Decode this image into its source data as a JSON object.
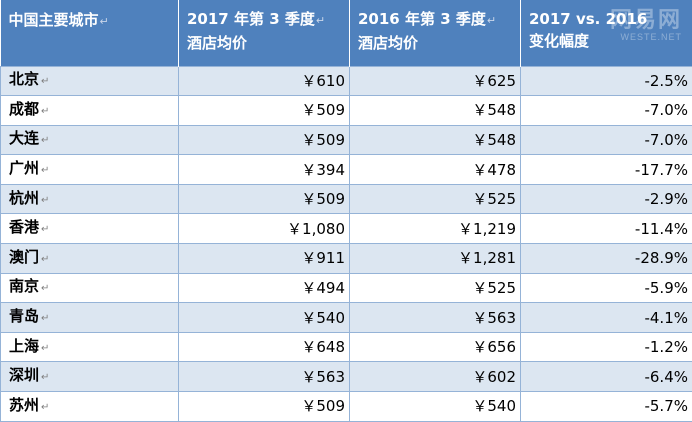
{
  "table": {
    "headers": [
      {
        "line1": "中国主要城市",
        "line2": ""
      },
      {
        "line1": "2017 年第 3 季度",
        "line2": "酒店均价"
      },
      {
        "line1": "2016 年第 3 季度",
        "line2": "酒店均价"
      },
      {
        "line1": "2017 vs. 2016",
        "line2": "变化幅度"
      }
    ],
    "rows": [
      {
        "city": "北京",
        "price_2017": "￥610",
        "price_2016": "￥625",
        "change": "-2.5%"
      },
      {
        "city": "成都",
        "price_2017": "￥509",
        "price_2016": "￥548",
        "change": "-7.0%"
      },
      {
        "city": "大连",
        "price_2017": "￥509",
        "price_2016": "￥548",
        "change": "-7.0%"
      },
      {
        "city": "广州",
        "price_2017": "￥394",
        "price_2016": "￥478",
        "change": "-17.7%"
      },
      {
        "city": "杭州",
        "price_2017": "￥509",
        "price_2016": "￥525",
        "change": "-2.9%"
      },
      {
        "city": "香港",
        "price_2017": "￥1,080",
        "price_2016": "￥1,219",
        "change": "-11.4%"
      },
      {
        "city": "澳门",
        "price_2017": "￥911",
        "price_2016": "￥1,281",
        "change": "-28.9%"
      },
      {
        "city": "南京",
        "price_2017": "￥494",
        "price_2016": "￥525",
        "change": "-5.9%"
      },
      {
        "city": "青岛",
        "price_2017": "￥540",
        "price_2016": "￥563",
        "change": "-4.1%"
      },
      {
        "city": "上海",
        "price_2017": "￥648",
        "price_2016": "￥656",
        "change": "-1.2%"
      },
      {
        "city": "深圳",
        "price_2017": "￥563",
        "price_2016": "￥602",
        "change": "-6.4%"
      },
      {
        "city": "苏州",
        "price_2017": "￥509",
        "price_2016": "￥540",
        "change": "-5.7%"
      }
    ]
  },
  "watermark": {
    "logo": "网易网",
    "url": "WESTE.NET"
  },
  "colors": {
    "header_bg": "#4f81bd",
    "band_bg": "#dce6f1",
    "border": "#95b3d7"
  }
}
